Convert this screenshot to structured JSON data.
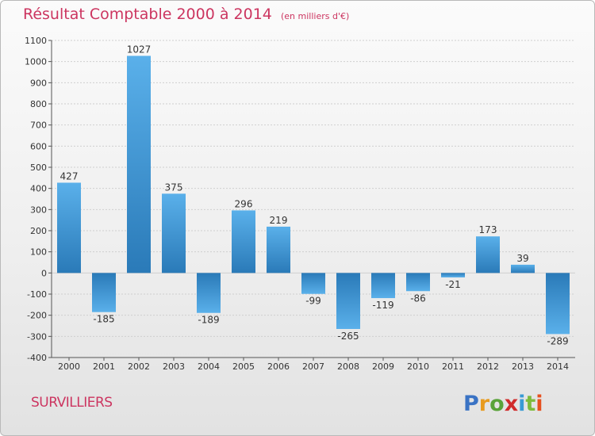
{
  "header": {
    "title": "Résultat Comptable 2000 à 2014",
    "unit_note": "(en milliers d'€)"
  },
  "footer": {
    "place": "SURVILLIERS",
    "brand": [
      "P",
      "r",
      "o",
      "x",
      "i",
      "t",
      "i"
    ],
    "brand_colors": [
      "#3a73c4",
      "#e89b1e",
      "#5aa33a",
      "#d02b2b",
      "#3a9bd4",
      "#7dbb3c",
      "#e6501f"
    ]
  },
  "colors": {
    "bar_light": "#5ab0ea",
    "bar_dark": "#2a7ab8",
    "grid": "#cfcfcf",
    "axis": "#555555",
    "text": "#333333"
  },
  "chart_data": {
    "type": "bar",
    "title": "Résultat Comptable 2000 à 2014",
    "subtitle": "(en milliers d'€)",
    "xlabel": "",
    "ylabel": "",
    "categories": [
      "2000",
      "2001",
      "2002",
      "2003",
      "2004",
      "2005",
      "2006",
      "2007",
      "2008",
      "2009",
      "2010",
      "2011",
      "2012",
      "2013",
      "2014"
    ],
    "values": [
      427,
      -185,
      1027,
      375,
      -189,
      296,
      219,
      -99,
      -265,
      -119,
      -86,
      -21,
      173,
      39,
      -289
    ],
    "ylim": [
      -400,
      1100
    ],
    "yticks": [
      -400,
      -300,
      -200,
      -100,
      0,
      100,
      200,
      300,
      400,
      500,
      600,
      700,
      800,
      900,
      1000,
      1100
    ],
    "grid": true,
    "data_labels": true
  }
}
